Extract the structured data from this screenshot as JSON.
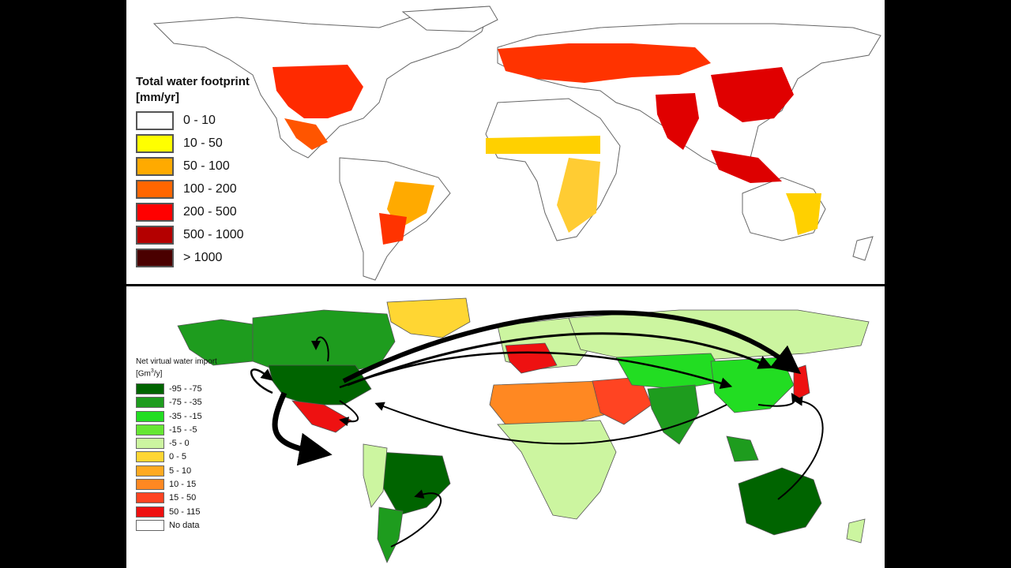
{
  "top_map": {
    "legend_title_line1": "Total water footprint",
    "legend_title_line2": "[mm/yr]",
    "legend_items": [
      {
        "label": "0 - 10",
        "color": "#ffffff"
      },
      {
        "label": "10 - 50",
        "color": "#ffff00"
      },
      {
        "label": "50 - 100",
        "color": "#ffaa00"
      },
      {
        "label": "100 - 200",
        "color": "#ff6600"
      },
      {
        "label": "200 - 500",
        "color": "#ff0000"
      },
      {
        "label": "500 - 1000",
        "color": "#b40000"
      },
      {
        "label": "> 1000",
        "color": "#4a0000"
      }
    ]
  },
  "bottom_map": {
    "legend_title_line1": "Net virtual water import",
    "legend_title_unit": "[Gm",
    "legend_title_sup": "3",
    "legend_title_end": "/y]",
    "legend_items": [
      {
        "label": "-95 - -75",
        "color": "#006400"
      },
      {
        "label": "-75 - -35",
        "color": "#1e9c1e"
      },
      {
        "label": "-35 - -15",
        "color": "#22dd22"
      },
      {
        "label": "-15 - -5",
        "color": "#66e633"
      },
      {
        "label": "-5 - 0",
        "color": "#ccf5a0"
      },
      {
        "label": "0 - 5",
        "color": "#ffd633"
      },
      {
        "label": "5 - 10",
        "color": "#ffaa22"
      },
      {
        "label": "10 - 15",
        "color": "#ff8822"
      },
      {
        "label": "15 - 50",
        "color": "#ff4422"
      },
      {
        "label": "50 - 115",
        "color": "#ee1111"
      },
      {
        "label": "No data",
        "color": "#ffffff"
      }
    ]
  }
}
